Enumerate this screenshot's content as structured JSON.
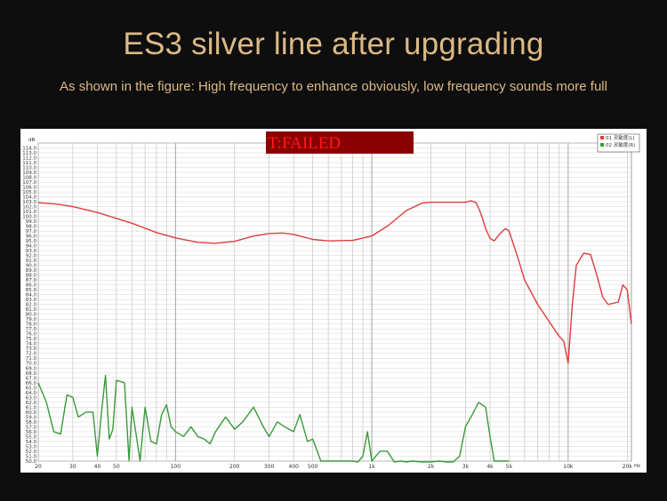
{
  "title": "ES3 silver line after upgrading",
  "subtitle": "As shown in the figure: High frequency to enhance obviously, low frequency sounds more full",
  "colors": {
    "background": "#0e0e0e",
    "title": "#dcb985",
    "series1": "#dd3c3c",
    "series2": "#3a9a3a",
    "failed_text": "#ff1a1a",
    "failed_bg": "#8b0000"
  },
  "chart_data": {
    "type": "line",
    "overlay_text": "T:FAILED",
    "y_unit": "dB",
    "x_unit": "Hz",
    "xscale": "log",
    "xlim": [
      20,
      21000
    ],
    "ylim": [
      50,
      115
    ],
    "grid": true,
    "legend_position": "top-right",
    "x_ticks": [
      {
        "value": 20,
        "label": "20"
      },
      {
        "value": 30,
        "label": "30"
      },
      {
        "value": 40,
        "label": "40"
      },
      {
        "value": 50,
        "label": "50"
      },
      {
        "value": 100,
        "label": "100"
      },
      {
        "value": 200,
        "label": "200"
      },
      {
        "value": 300,
        "label": "300"
      },
      {
        "value": 400,
        "label": "400"
      },
      {
        "value": 500,
        "label": "500"
      },
      {
        "value": 1000,
        "label": "1k"
      },
      {
        "value": 2000,
        "label": "2k"
      },
      {
        "value": 3000,
        "label": "3k"
      },
      {
        "value": 4000,
        "label": "4k"
      },
      {
        "value": 5000,
        "label": "5k"
      },
      {
        "value": 10000,
        "label": "10k"
      },
      {
        "value": 20000,
        "label": "20k"
      }
    ],
    "series": [
      {
        "name": "01 灵敏度(L)",
        "color": "#dd3c3c",
        "x": [
          20,
          25,
          30,
          40,
          50,
          60,
          80,
          100,
          130,
          160,
          200,
          250,
          300,
          350,
          400,
          500,
          600,
          800,
          1000,
          1200,
          1500,
          1800,
          2000,
          2500,
          3000,
          3200,
          3400,
          3600,
          3800,
          4000,
          4200,
          4500,
          4800,
          5000,
          5500,
          6000,
          7000,
          8000,
          9000,
          9500,
          10000,
          10500,
          11000,
          12000,
          13000,
          14000,
          15000,
          16000,
          18000,
          19000,
          20000,
          21000
        ],
        "y": [
          102.8,
          102.5,
          102,
          100.8,
          99.6,
          98.6,
          96.7,
          95.6,
          94.7,
          94.5,
          94.9,
          96.0,
          96.5,
          96.6,
          96.3,
          95.3,
          95.0,
          95.1,
          96.0,
          98.0,
          101.2,
          102.7,
          102.9,
          102.9,
          102.9,
          103.2,
          102.8,
          100.5,
          97.5,
          95.5,
          95.0,
          96.5,
          97.5,
          97.0,
          92.0,
          87.0,
          82.0,
          78.5,
          75.5,
          74.5,
          70.0,
          82.0,
          90.0,
          92.5,
          92.2,
          88.0,
          83.5,
          82.0,
          82.5,
          86.0,
          85.0,
          78.0
        ]
      },
      {
        "name": "02 灵敏度(R)",
        "color": "#3a9a3a",
        "x": [
          20,
          22,
          24,
          26,
          28,
          30,
          32,
          35,
          38,
          40,
          42,
          44,
          46,
          48,
          50,
          55,
          58,
          60,
          63,
          66,
          70,
          75,
          80,
          85,
          90,
          95,
          100,
          110,
          120,
          130,
          140,
          150,
          160,
          180,
          200,
          220,
          250,
          280,
          300,
          330,
          360,
          400,
          430,
          470,
          500,
          550,
          600,
          650,
          700,
          750,
          800,
          850,
          900,
          950,
          1000,
          1100,
          1200,
          1300,
          1400,
          1500,
          1600,
          1800,
          2000,
          2200,
          2400,
          2600,
          2800,
          3000,
          3200,
          3500,
          3800,
          4000,
          4200,
          4500,
          5000
        ],
        "y": [
          66,
          62,
          56,
          55.5,
          63.5,
          63,
          59,
          60,
          60,
          51,
          60,
          67.5,
          54.5,
          56.5,
          66.5,
          66,
          50,
          61,
          55.5,
          50,
          61,
          54,
          53.5,
          59.5,
          61.5,
          57,
          56,
          55,
          57,
          55,
          54.5,
          53.5,
          56,
          59,
          56.5,
          58,
          61,
          57,
          55,
          58,
          57,
          56,
          59.5,
          54,
          54.5,
          50,
          50,
          50,
          50,
          50,
          50,
          49,
          51,
          56,
          50,
          52,
          52,
          48,
          50,
          49,
          50,
          48,
          49,
          50,
          49,
          47,
          51,
          57,
          59,
          62,
          61,
          55,
          50,
          50,
          50
        ]
      }
    ]
  }
}
